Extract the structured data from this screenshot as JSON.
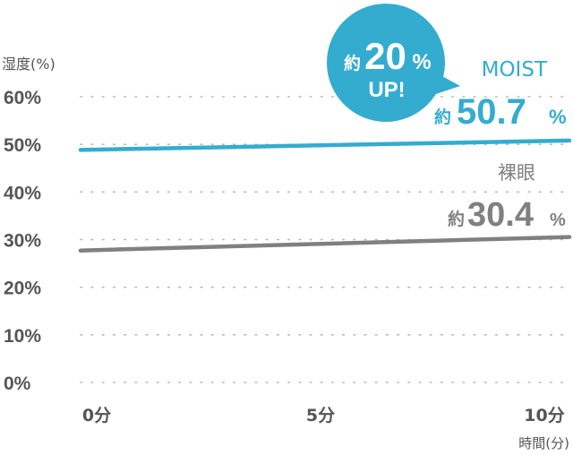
{
  "chart_data": {
    "type": "line",
    "ylabel": "湿度(%)",
    "xlabel": "時間(分)",
    "ylim": [
      0,
      60
    ],
    "yticks": [
      "60%",
      "50%",
      "40%",
      "30%",
      "20%",
      "10%",
      "0%"
    ],
    "ytick_values": [
      60,
      50,
      40,
      30,
      20,
      10,
      0
    ],
    "x": [
      0,
      10
    ],
    "xlim": [
      0,
      10
    ],
    "xticks": [
      "0分",
      "5分",
      "10分"
    ],
    "xtick_values": [
      0,
      5,
      10
    ],
    "grid": true,
    "series": [
      {
        "name": "MOIST",
        "x": [
          0,
          10
        ],
        "values": [
          48.9,
          50.7
        ],
        "color": "#33acd0",
        "end_label": {
          "prefix": "約",
          "value": "50.7",
          "unit": "%"
        }
      },
      {
        "name": "裸眼",
        "x": [
          0,
          10
        ],
        "values": [
          27.8,
          30.4
        ],
        "color": "#808080",
        "end_label": {
          "prefix": "約",
          "value": "30.4",
          "unit": "%"
        }
      }
    ],
    "callout": {
      "prefix": "約",
      "value": "20",
      "unit": "%",
      "line2": "UP!",
      "color": "#33acd0"
    }
  }
}
